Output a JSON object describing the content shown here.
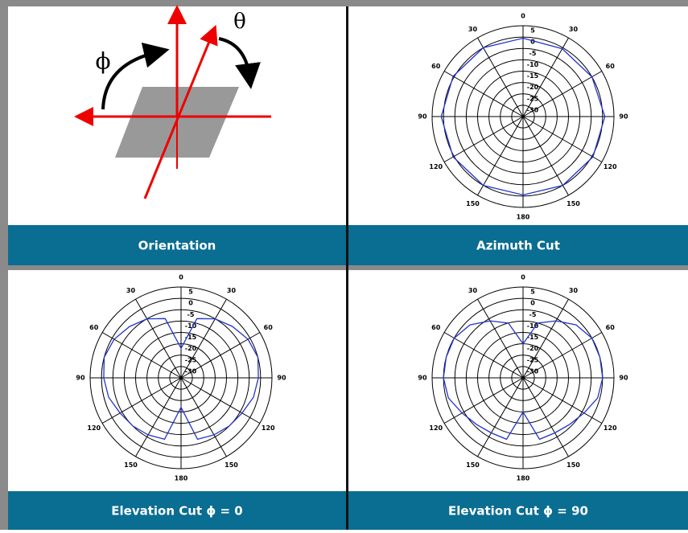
{
  "orientation": {
    "title": "Orientation",
    "phi": "ϕ",
    "theta": "θ"
  },
  "chart_data": [
    {
      "type": "polar",
      "title": "Azimuth Cut",
      "color": "#2233cc",
      "x": [
        0,
        30,
        60,
        90,
        120,
        150,
        180,
        210,
        240,
        270,
        300,
        330
      ],
      "values": [
        -0.5,
        -0.5,
        0,
        1,
        0.5,
        0,
        -0.5,
        0,
        0.5,
        1,
        0.5,
        0
      ],
      "rlim": [
        -35,
        5
      ],
      "rticks": [
        5,
        0,
        -5,
        -10,
        -15,
        -20,
        -25,
        -30
      ],
      "xticks": [
        0,
        30,
        60,
        90,
        120,
        150,
        180,
        {
          "value": 210,
          "label": "150"
        },
        {
          "value": 240,
          "label": "120"
        },
        {
          "value": 270,
          "label": "90"
        },
        {
          "value": 300,
          "label": "60"
        },
        {
          "value": 330,
          "label": "30"
        }
      ]
    },
    {
      "type": "polar",
      "title": "Elevation Cut  ϕ = 0",
      "color": "#2233cc",
      "x": [
        0,
        15,
        30,
        45,
        60,
        75,
        90,
        105,
        120,
        135,
        150,
        165,
        180,
        195,
        210,
        225,
        240,
        255,
        270,
        285,
        300,
        315,
        330,
        345
      ],
      "values": [
        -22,
        -8,
        -5,
        -3,
        -1,
        0,
        -1,
        -2,
        -4,
        -5,
        -6,
        -7,
        -22,
        -7,
        -6,
        -5,
        -4,
        -2,
        -1,
        0,
        -1,
        -3,
        -5,
        -8
      ],
      "rlim": [
        -35,
        5
      ],
      "rticks": [
        5,
        0,
        -5,
        -10,
        -15,
        -20,
        -25,
        -30
      ],
      "xticks": [
        0,
        30,
        60,
        90,
        120,
        150,
        180,
        {
          "value": 210,
          "label": "150"
        },
        {
          "value": 240,
          "label": "120"
        },
        {
          "value": 270,
          "label": "90"
        },
        {
          "value": 300,
          "label": "60"
        },
        {
          "value": 330,
          "label": "30"
        }
      ]
    },
    {
      "type": "polar",
      "title": "Elevation Cut  ϕ = 90",
      "color": "#2233cc",
      "x": [
        0,
        15,
        30,
        45,
        60,
        75,
        90,
        105,
        120,
        135,
        150,
        165,
        180,
        195,
        210,
        225,
        240,
        255,
        270,
        285,
        300,
        315,
        330,
        345
      ],
      "values": [
        -20,
        -10,
        -6,
        -2,
        0,
        0,
        0,
        -1,
        -4,
        -6,
        -7,
        -7,
        -20,
        -7,
        -7,
        -6,
        -4,
        -1,
        0,
        0,
        0,
        -2,
        -6,
        -10
      ],
      "rlim": [
        -35,
        5
      ],
      "rticks": [
        5,
        0,
        -5,
        -10,
        -15,
        -20,
        -25,
        -30
      ],
      "xticks": [
        0,
        30,
        60,
        90,
        120,
        150,
        180,
        {
          "value": 210,
          "label": "150"
        },
        {
          "value": 240,
          "label": "120"
        },
        {
          "value": 270,
          "label": "90"
        },
        {
          "value": 300,
          "label": "60"
        },
        {
          "value": 330,
          "label": "30"
        }
      ]
    }
  ]
}
